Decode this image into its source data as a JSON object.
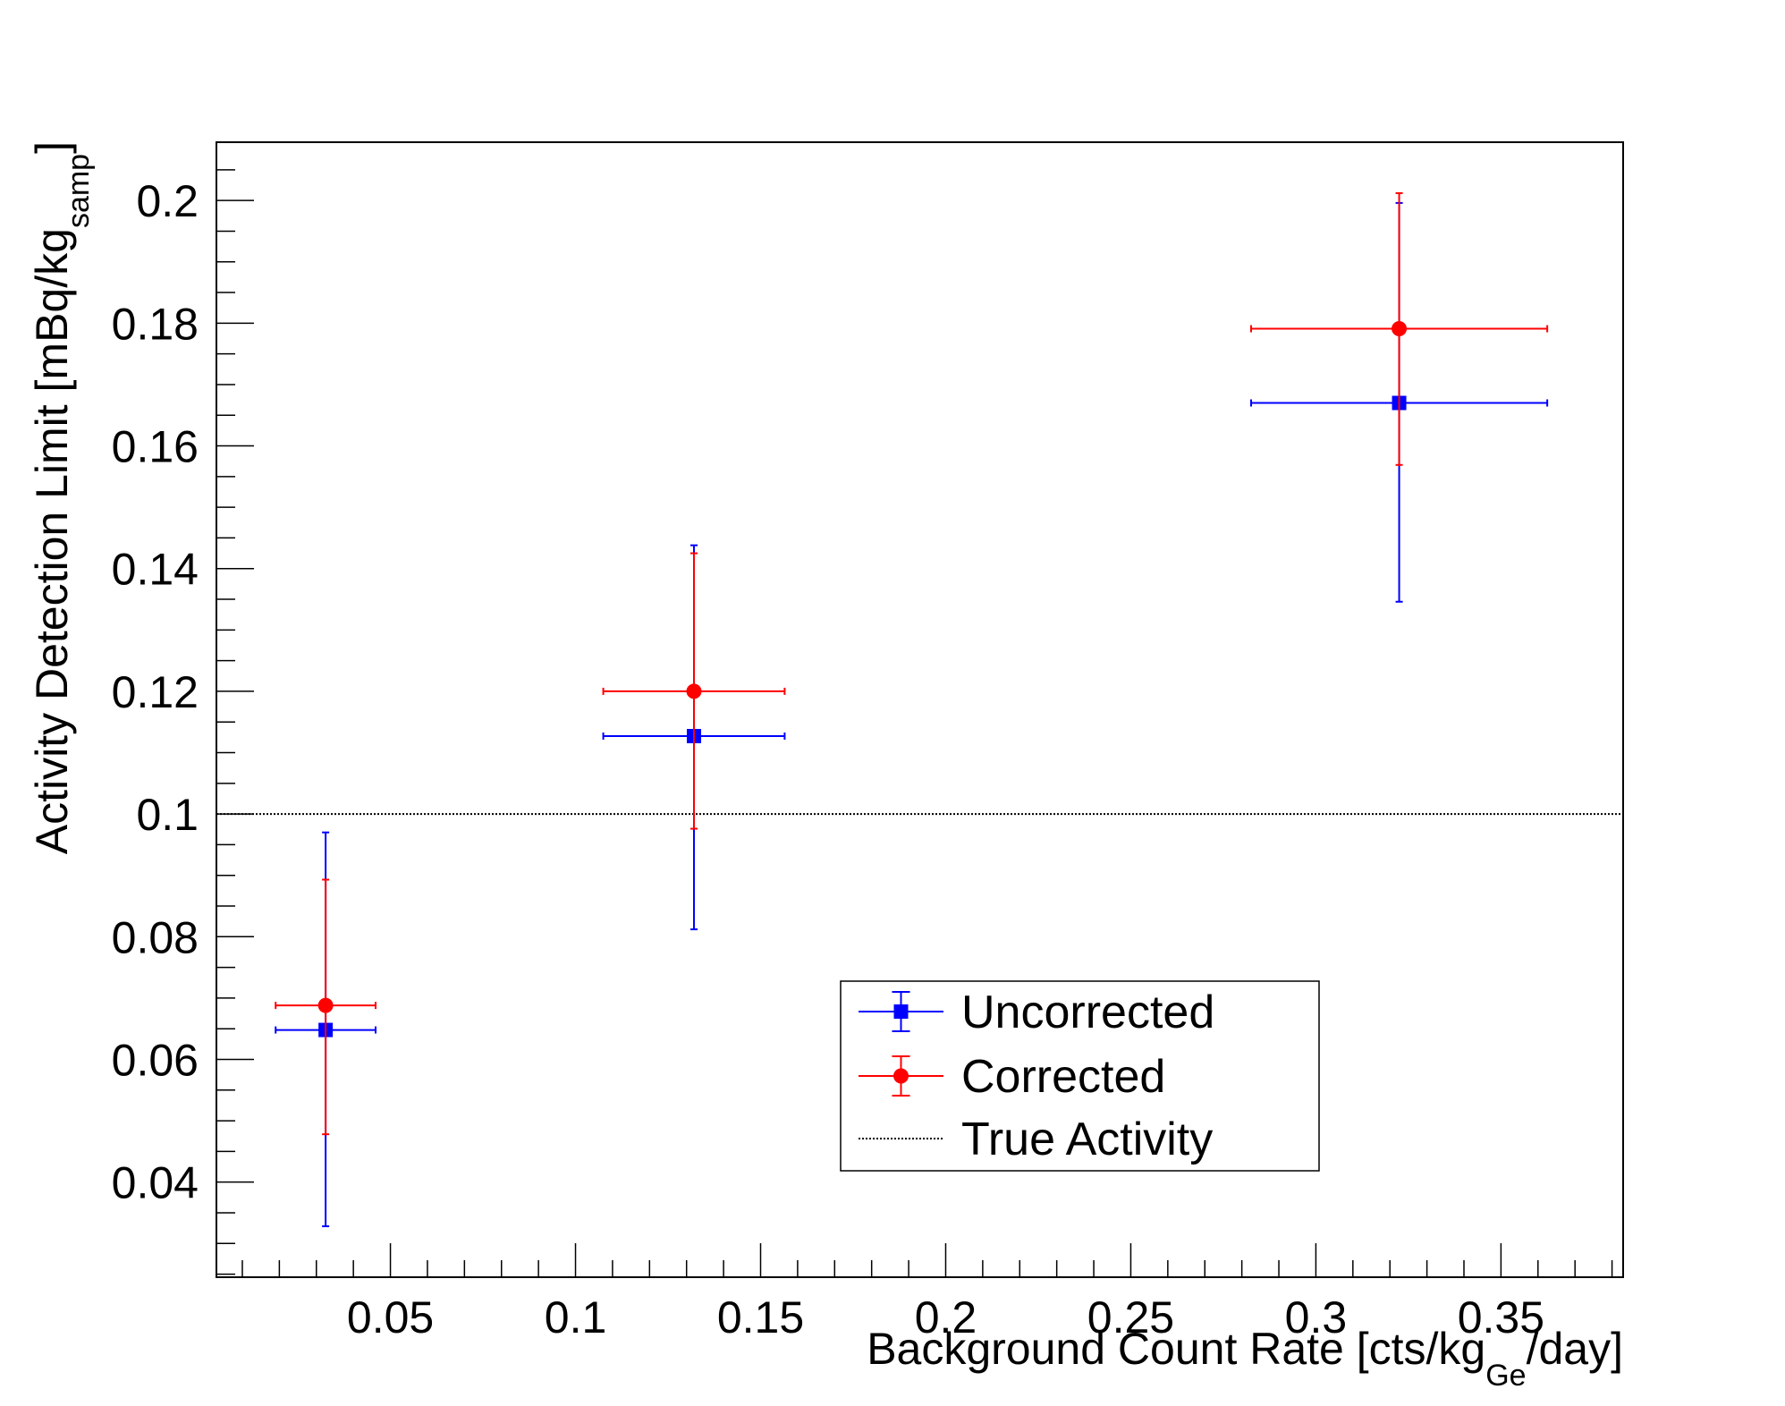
{
  "chart_data": {
    "type": "scatter",
    "xlabel": {
      "main": "Background Count Rate [cts/kg",
      "sub": "Ge",
      "tail": "/day]"
    },
    "ylabel": {
      "main": "Activity Detection Limit [mBq/kg",
      "sub": "samp",
      "tail": "]"
    },
    "xlim": [
      0.003,
      0.383
    ],
    "ylim": [
      0.0245,
      0.2095
    ],
    "x_ticks": [
      {
        "value": 0.05,
        "label": "0.05"
      },
      {
        "value": 0.1,
        "label": "0.1"
      },
      {
        "value": 0.15,
        "label": "0.15"
      },
      {
        "value": 0.2,
        "label": "0.2"
      },
      {
        "value": 0.25,
        "label": "0.25"
      },
      {
        "value": 0.3,
        "label": "0.3"
      },
      {
        "value": 0.35,
        "label": "0.35"
      }
    ],
    "y_ticks": [
      {
        "value": 0.04,
        "label": "0.04"
      },
      {
        "value": 0.06,
        "label": "0.06"
      },
      {
        "value": 0.08,
        "label": "0.08"
      },
      {
        "value": 0.1,
        "label": "0.1"
      },
      {
        "value": 0.12,
        "label": "0.12"
      },
      {
        "value": 0.14,
        "label": "0.14"
      },
      {
        "value": 0.16,
        "label": "0.16"
      },
      {
        "value": 0.18,
        "label": "0.18"
      },
      {
        "value": 0.2,
        "label": "0.2"
      }
    ],
    "series": [
      {
        "name": "Uncorrected",
        "color": "#0000ff",
        "marker": "square",
        "points": [
          {
            "x": 0.0325,
            "y": 0.0648,
            "xerr": 0.0135,
            "ylo": 0.0328,
            "yhi": 0.097
          },
          {
            "x": 0.132,
            "y": 0.1127,
            "xerr": 0.0245,
            "ylo": 0.0812,
            "yhi": 0.1438
          },
          {
            "x": 0.3225,
            "y": 0.167,
            "xerr": 0.04,
            "ylo": 0.1346,
            "yhi": 0.1996
          }
        ]
      },
      {
        "name": "Corrected",
        "color": "#ff0000",
        "marker": "circle",
        "points": [
          {
            "x": 0.0325,
            "y": 0.0688,
            "xerr": 0.0135,
            "ylo": 0.0478,
            "yhi": 0.0893
          },
          {
            "x": 0.132,
            "y": 0.12,
            "xerr": 0.0245,
            "ylo": 0.0976,
            "yhi": 0.1425
          },
          {
            "x": 0.3225,
            "y": 0.1791,
            "xerr": 0.04,
            "ylo": 0.1569,
            "yhi": 0.2012
          }
        ]
      }
    ],
    "reference_line": {
      "name": "True Activity",
      "y": 0.1,
      "color": "#000000",
      "style": "dotted"
    },
    "legend": {
      "placement": "lower-center",
      "entries": [
        "Uncorrected",
        "Corrected",
        "True Activity"
      ]
    },
    "grid": false
  }
}
